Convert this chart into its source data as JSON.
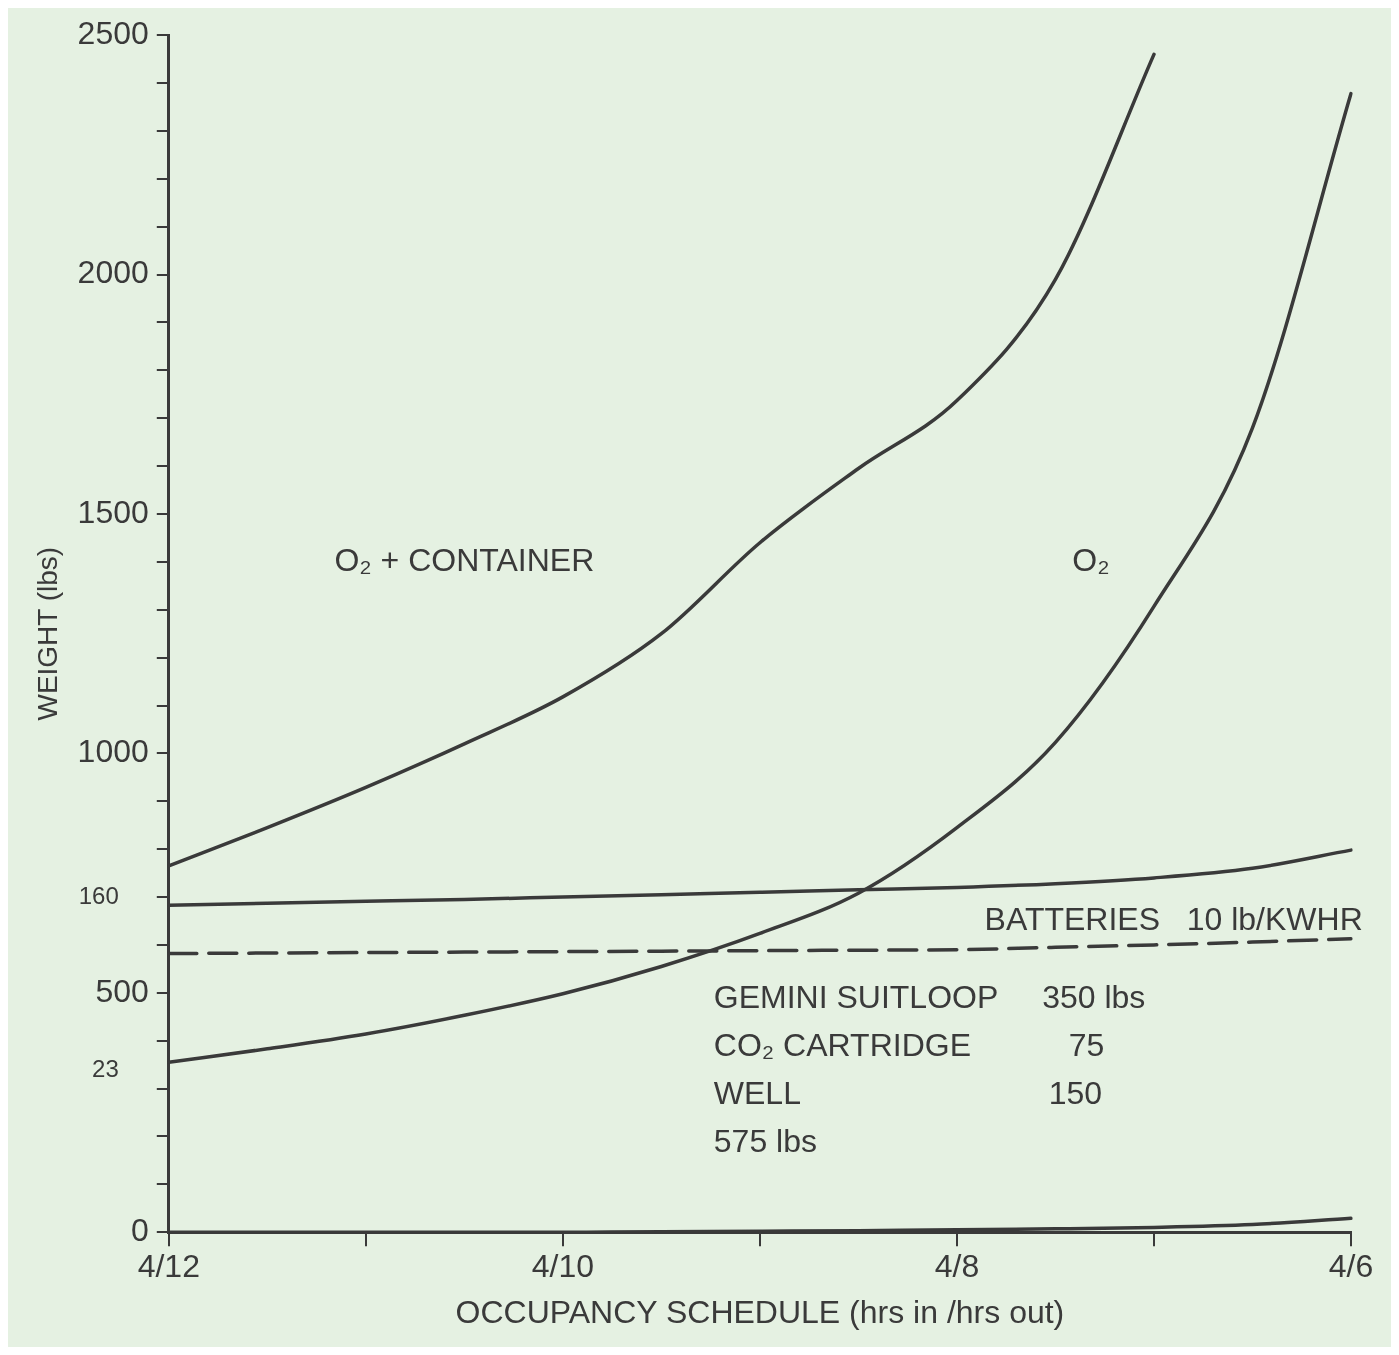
{
  "chart_data": {
    "type": "line",
    "xlabel": "OCCUPANCY SCHEDULE (hrs in /hrs out)",
    "ylabel": "WEIGHT (lbs)",
    "categories": [
      "4/12",
      null,
      null,
      null,
      "4/10",
      null,
      null,
      null,
      "4/8",
      null,
      null,
      null,
      "4/6"
    ],
    "series": [
      {
        "color": "#3a3a3a",
        "values": [
          765,
          845,
          929,
          1020,
          1118,
          1250,
          1440,
          1595,
          1737,
          1990,
          2460,
          null,
          null
        ]
      },
      {
        "color": "#3a3a3a",
        "values": [
          355,
          383,
          414,
          453,
          498,
          555,
          624,
          708,
          845,
          1023,
          1307,
          1680,
          2378
        ]
      },
      {
        "color": "#3a3a3a",
        "values": [
          683,
          687,
          691,
          695,
          700,
          705,
          710,
          715,
          720,
          728,
          740,
          760,
          798
        ]
      },
      {
        "color": "#3a3a3a",
        "line_style": "dashed",
        "values": [
          582,
          583,
          584,
          585,
          586,
          587,
          588,
          589,
          590,
          595,
          600,
          606,
          613
        ]
      },
      {
        "color": "#3a3a3a",
        "values": [
          0,
          0,
          0,
          0,
          0,
          1,
          2,
          3,
          5,
          7,
          10,
          16,
          29
        ]
      }
    ],
    "ylim": [
      0,
      2500
    ],
    "yticks": [
      0,
      {
        "value": 100,
        "label": null
      },
      {
        "value": 200,
        "label": null
      },
      {
        "value": 300,
        "label": null
      },
      {
        "value": 400,
        "label": null
      },
      500,
      {
        "value": 600,
        "label": null
      },
      {
        "value": 700,
        "label": null
      },
      {
        "value": 800,
        "label": null
      },
      {
        "value": 900,
        "label": null
      },
      1000,
      {
        "value": 1100,
        "label": null
      },
      {
        "value": 1200,
        "label": null
      },
      {
        "value": 1300,
        "label": null
      },
      {
        "value": 1400,
        "label": null
      },
      1500,
      {
        "value": 1600,
        "label": null
      },
      {
        "value": 1700,
        "label": null
      },
      {
        "value": 1800,
        "label": null
      },
      {
        "value": 1900,
        "label": null
      },
      2000,
      {
        "value": 2100,
        "label": null
      },
      {
        "value": 2200,
        "label": null
      },
      {
        "value": 2300,
        "label": null
      },
      {
        "value": 2400,
        "label": null
      },
      2500
    ],
    "grid": false,
    "legend": false,
    "marker": "none",
    "line_style": "solid",
    "annotations": [
      "O₂ + CONTAINER",
      "O₂",
      "BATTERIES   10 lb/KWHR",
      "160",
      "23",
      "GEMINI SUITLOOP     350 lbs",
      "CO₂ CARTRIDGE           75",
      "WELL                            150",
      "575 lbs"
    ]
  }
}
